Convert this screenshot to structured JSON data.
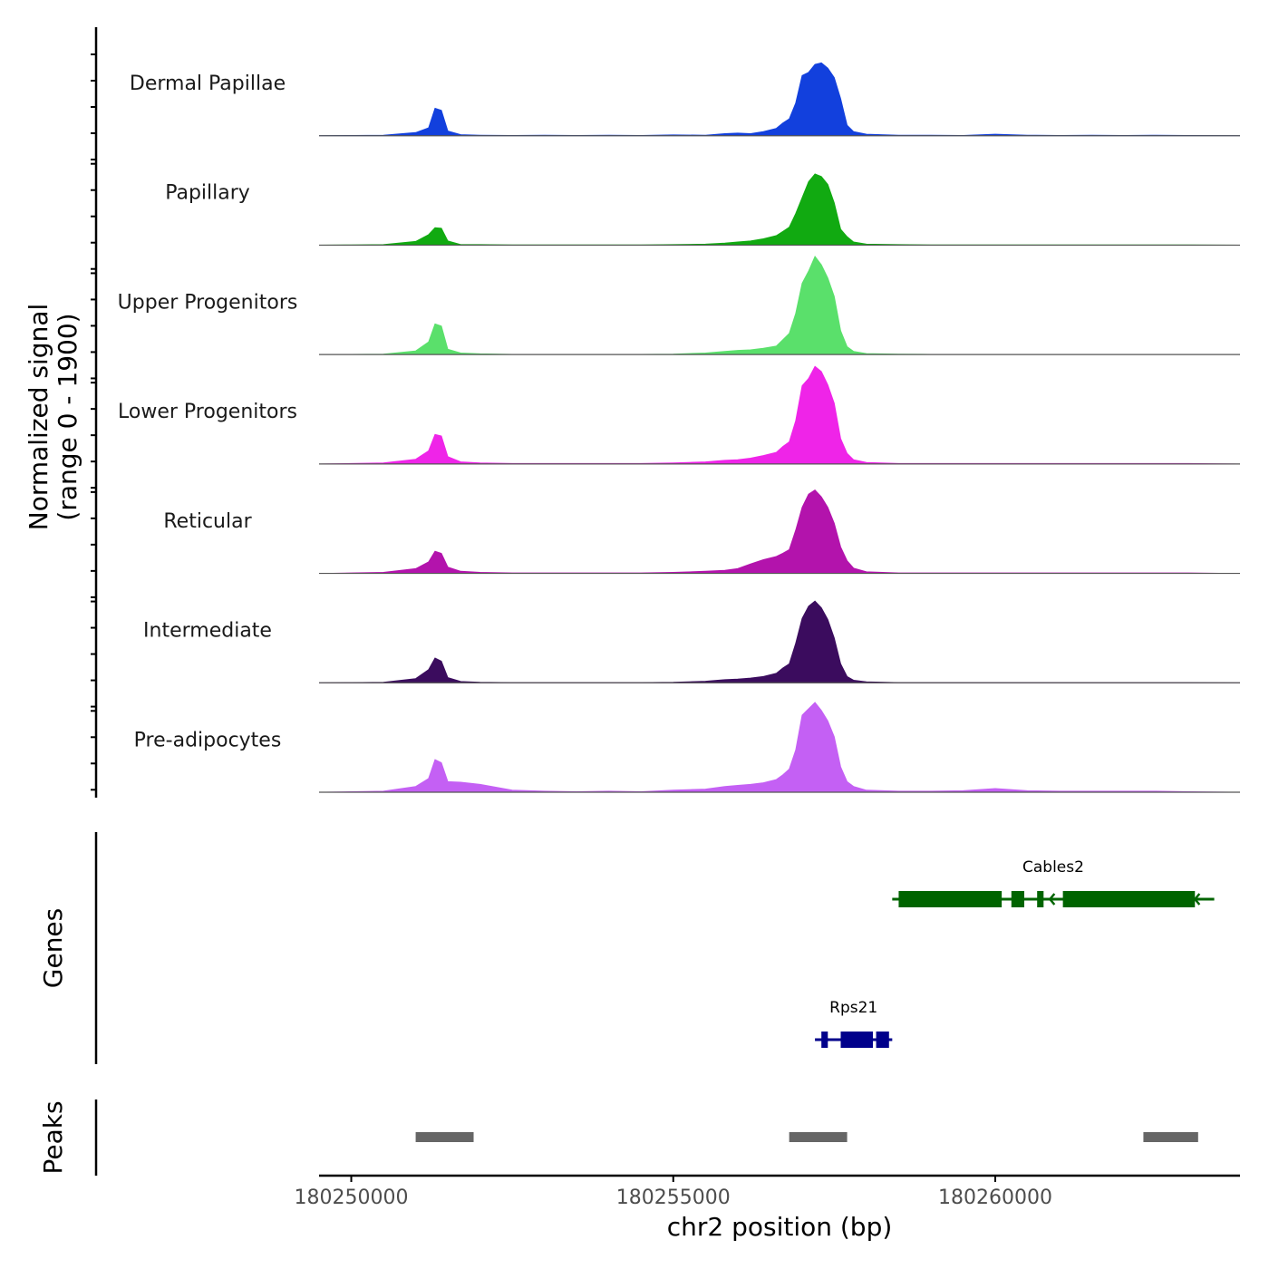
{
  "chart_data": {
    "type": "area",
    "chromosome": "chr2",
    "xlabel": "chr2 position (bp)",
    "xlim": [
      180249500,
      180263800
    ],
    "x_ticks": [
      180250000,
      180255000,
      180260000
    ],
    "x_tick_labels": [
      "180250000",
      "180255000",
      "180260000"
    ],
    "coverage_panel": {
      "ylabel_line1": "Normalized signal",
      "ylabel_line2": "(range 0 - 1900)",
      "ylim": [
        0,
        1900
      ],
      "x_grid": [
        180249500,
        180250000,
        180250500,
        180251000,
        180251200,
        180251300,
        180251400,
        180251500,
        180251700,
        180252000,
        180252500,
        180253000,
        180253500,
        180254000,
        180254500,
        180255000,
        180255500,
        180255800,
        180256000,
        180256200,
        180256400,
        180256600,
        180256700,
        180256800,
        180256900,
        180257000,
        180257100,
        180257200,
        180257300,
        180257400,
        180257500,
        180257600,
        180257700,
        180257800,
        180258000,
        180258500,
        180259000,
        180259500,
        180260000,
        180260500,
        180261000,
        180261500,
        180262000,
        180262500,
        180263000,
        180263800
      ],
      "series": [
        {
          "name": "Dermal Papillae",
          "color": "#1240dd",
          "values": [
            0,
            5,
            10,
            60,
            150,
            520,
            480,
            90,
            20,
            10,
            5,
            10,
            5,
            10,
            5,
            15,
            10,
            40,
            50,
            40,
            80,
            140,
            240,
            320,
            620,
            1140,
            1200,
            1350,
            1380,
            1280,
            1100,
            700,
            200,
            80,
            30,
            10,
            10,
            5,
            30,
            10,
            5,
            10,
            5,
            10,
            5,
            0
          ]
        },
        {
          "name": "Papillary",
          "color": "#11aa11",
          "values": [
            0,
            5,
            10,
            70,
            200,
            330,
            320,
            80,
            10,
            10,
            5,
            5,
            5,
            5,
            5,
            10,
            20,
            40,
            60,
            80,
            120,
            180,
            260,
            340,
            600,
            900,
            1200,
            1350,
            1300,
            1150,
            800,
            300,
            160,
            60,
            20,
            10,
            5,
            5,
            5,
            5,
            5,
            5,
            5,
            5,
            5,
            0
          ]
        },
        {
          "name": "Upper Progenitors",
          "color": "#5ae06b",
          "values": [
            0,
            5,
            10,
            70,
            240,
            580,
            540,
            100,
            30,
            15,
            5,
            5,
            5,
            5,
            5,
            10,
            30,
            60,
            80,
            90,
            120,
            160,
            280,
            400,
            780,
            1350,
            1580,
            1860,
            1700,
            1450,
            1100,
            450,
            150,
            60,
            20,
            10,
            5,
            5,
            5,
            5,
            5,
            5,
            5,
            5,
            5,
            0
          ]
        },
        {
          "name": "Lower Progenitors",
          "color": "#ef24e8",
          "values": [
            0,
            10,
            20,
            90,
            250,
            560,
            530,
            140,
            40,
            20,
            10,
            10,
            10,
            10,
            10,
            20,
            40,
            70,
            80,
            110,
            160,
            220,
            330,
            420,
            820,
            1480,
            1620,
            1850,
            1750,
            1500,
            1150,
            480,
            200,
            80,
            30,
            10,
            10,
            10,
            10,
            10,
            10,
            10,
            10,
            10,
            10,
            0
          ]
        },
        {
          "name": "Reticular",
          "color": "#b313ac",
          "values": [
            0,
            10,
            20,
            90,
            220,
            420,
            380,
            120,
            40,
            20,
            10,
            10,
            10,
            10,
            10,
            20,
            40,
            60,
            90,
            180,
            260,
            320,
            380,
            450,
            820,
            1250,
            1500,
            1580,
            1450,
            1250,
            950,
            500,
            240,
            100,
            30,
            10,
            10,
            10,
            10,
            10,
            10,
            10,
            10,
            10,
            10,
            0
          ]
        },
        {
          "name": "Intermediate",
          "color": "#3b0c5e",
          "values": [
            0,
            5,
            10,
            80,
            250,
            470,
            410,
            100,
            25,
            10,
            5,
            5,
            5,
            5,
            5,
            10,
            30,
            60,
            70,
            90,
            120,
            180,
            280,
            360,
            750,
            1220,
            1450,
            1550,
            1420,
            1200,
            850,
            360,
            120,
            50,
            20,
            5,
            5,
            5,
            5,
            5,
            5,
            5,
            5,
            5,
            5,
            0
          ]
        },
        {
          "name": "Pre-adipocytes",
          "color": "#c460f4",
          "values": [
            0,
            10,
            20,
            110,
            260,
            620,
            560,
            200,
            190,
            150,
            40,
            20,
            10,
            20,
            10,
            40,
            60,
            110,
            130,
            150,
            180,
            240,
            330,
            440,
            800,
            1460,
            1580,
            1700,
            1550,
            1350,
            1050,
            480,
            200,
            110,
            40,
            20,
            20,
            30,
            70,
            30,
            20,
            20,
            20,
            20,
            10,
            0
          ]
        }
      ]
    },
    "genes_panel": {
      "ylabel": "Genes",
      "genes": [
        {
          "name": "Cables2",
          "color": "#006400",
          "strand": "-",
          "start": 180258400,
          "end": 180263400,
          "exons": [
            [
              180258500,
              180260100
            ],
            [
              180260250,
              180260450
            ],
            [
              180260650,
              180260750
            ],
            [
              180261050,
              180263100
            ]
          ]
        },
        {
          "name": "Rps21",
          "color": "#00008b",
          "strand": "+",
          "start": 180257200,
          "end": 180258400,
          "exons": [
            [
              180257300,
              180257400
            ],
            [
              180257600,
              180258100
            ],
            [
              180258150,
              180258350
            ]
          ]
        }
      ]
    },
    "peaks_panel": {
      "ylabel": "Peaks",
      "color": "#666666",
      "peaks": [
        [
          180251000,
          180251900
        ],
        [
          180256800,
          180257700
        ],
        [
          180262300,
          180263150
        ]
      ]
    }
  }
}
